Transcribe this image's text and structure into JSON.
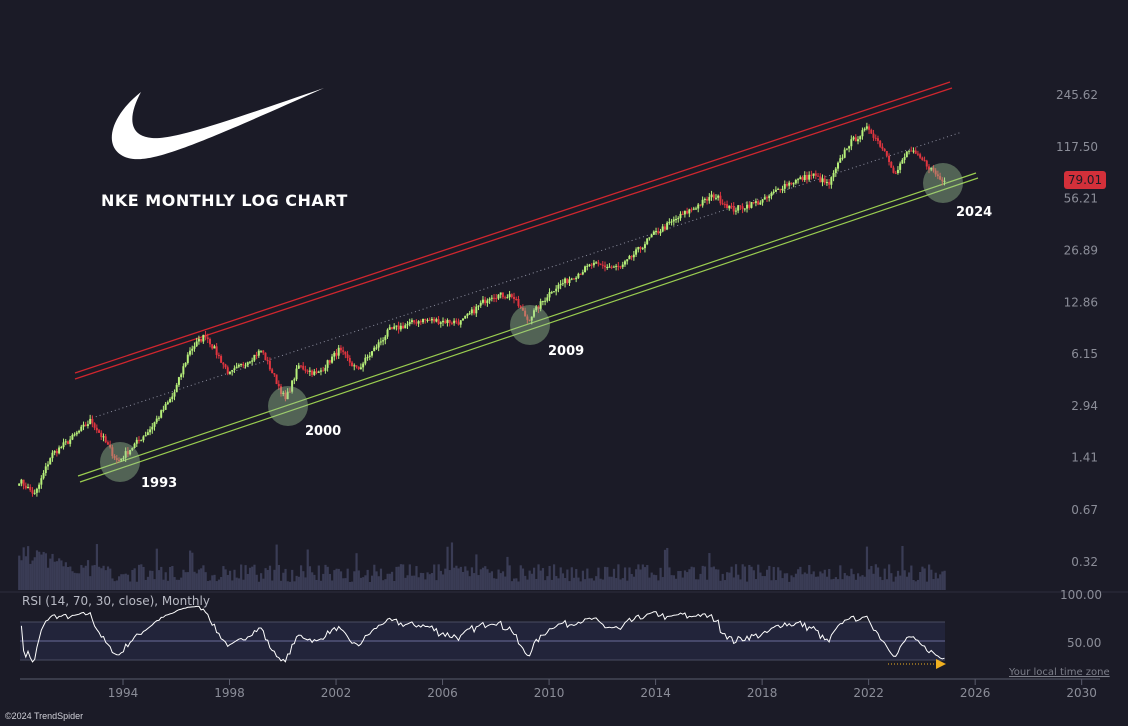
{
  "chart_data": {
    "type": "candlestick",
    "title": "NKE MONTHLY LOG CHART",
    "symbol": "NKE",
    "scale": "log",
    "last_price": "79.01",
    "y_ticks": [
      "245.62",
      "117.50",
      "56.21",
      "26.89",
      "12.86",
      "6.15",
      "2.94",
      "1.41",
      "0.67",
      "0.32"
    ],
    "y_tick_values": [
      245.62,
      117.5,
      56.21,
      26.89,
      12.86,
      6.15,
      2.94,
      1.41,
      0.67,
      0.32
    ],
    "x_ticks": [
      "1994",
      "1998",
      "2002",
      "2006",
      "2010",
      "2014",
      "2018",
      "2022",
      "2026",
      "2030"
    ],
    "price_path": [
      [
        1990.1,
        1.02
      ],
      [
        1990.7,
        0.83
      ],
      [
        1991.3,
        1.46
      ],
      [
        1992.0,
        1.81
      ],
      [
        1992.8,
        2.4
      ],
      [
        1993.3,
        1.8
      ],
      [
        1993.8,
        1.33
      ],
      [
        1995.0,
        2.1
      ],
      [
        1995.9,
        3.45
      ],
      [
        1996.5,
        6.5
      ],
      [
        1997.1,
        8.1
      ],
      [
        1998.0,
        4.6
      ],
      [
        1999.2,
        6.5
      ],
      [
        2000.1,
        3.2
      ],
      [
        2000.6,
        5.2
      ],
      [
        2001.3,
        4.6
      ],
      [
        2002.1,
        6.5
      ],
      [
        2002.8,
        4.9
      ],
      [
        2004.0,
        8.6
      ],
      [
        2005.2,
        10.0
      ],
      [
        2006.7,
        9.7
      ],
      [
        2007.8,
        14.2
      ],
      [
        2008.6,
        14.2
      ],
      [
        2009.2,
        10.0
      ],
      [
        2010.1,
        15.3
      ],
      [
        2011.6,
        21.9
      ],
      [
        2012.7,
        21.0
      ],
      [
        2013.9,
        33.5
      ],
      [
        2015.0,
        44.5
      ],
      [
        2016.2,
        59
      ],
      [
        2016.9,
        48
      ],
      [
        2018.1,
        55
      ],
      [
        2018.8,
        68
      ],
      [
        2019.9,
        79
      ],
      [
        2020.5,
        68
      ],
      [
        2021.2,
        120
      ],
      [
        2022.0,
        154
      ],
      [
        2022.7,
        105
      ],
      [
        2023.0,
        79
      ],
      [
        2023.5,
        113
      ],
      [
        2024.2,
        91
      ],
      [
        2024.8,
        71
      ],
      [
        2024.9,
        79.01
      ]
    ],
    "annotations": [
      "1993",
      "2000",
      "2009",
      "2024"
    ],
    "indicator": {
      "label": "RSI (14, 70, 30, close), Monthly",
      "y_ticks": [
        "100.00",
        "50.00"
      ]
    },
    "colors": {
      "up": "#b7f07a",
      "down": "#e0353f",
      "channel_upper": "#d0262e",
      "channel_lower": "#9acd50",
      "volume": "#3a3c55",
      "background": "#1b1b27"
    }
  },
  "footer": {
    "timezone": "Your local time zone",
    "copyright": "©2024 TrendSpider"
  }
}
